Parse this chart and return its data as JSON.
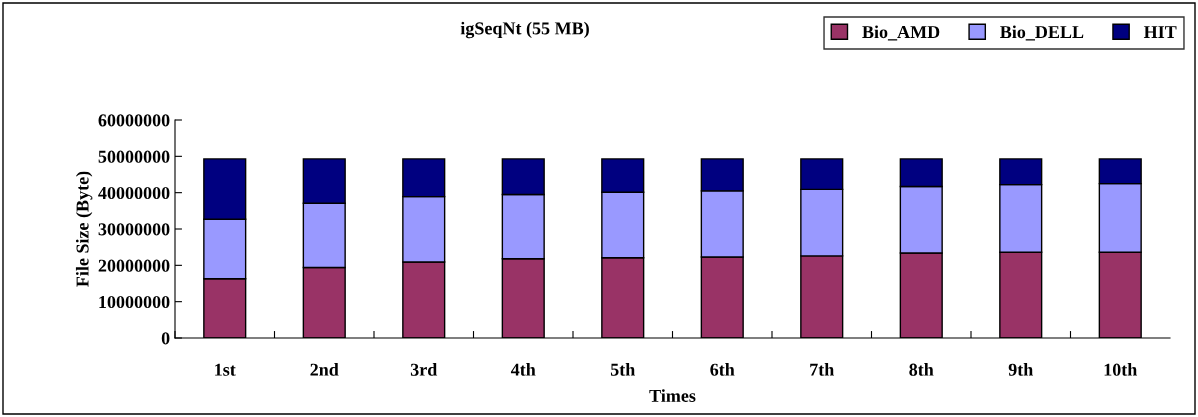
{
  "chart_data": {
    "type": "bar",
    "title": "igSeqNt (55 MB)",
    "xlabel": "Times",
    "ylabel": "File Size (Byte)",
    "categories": [
      "1st",
      "2nd",
      "3rd",
      "4th",
      "5th",
      "6th",
      "7th",
      "8th",
      "9th",
      "10th"
    ],
    "stacked": true,
    "legend": "top right",
    "grid": false,
    "ylim": [
      0,
      60000000
    ],
    "yticks": [
      0,
      10000000,
      20000000,
      30000000,
      40000000,
      50000000,
      60000000
    ],
    "series": [
      {
        "name": "Bio_AMD",
        "color": "#993366",
        "values": [
          16300000,
          19400000,
          20900000,
          21800000,
          22100000,
          22300000,
          22600000,
          23400000,
          23600000,
          23600000
        ]
      },
      {
        "name": "Bio_DELL",
        "color": "#9999ff",
        "values": [
          16400000,
          17700000,
          18000000,
          17700000,
          18000000,
          18200000,
          18300000,
          18300000,
          18600000,
          18900000
        ]
      },
      {
        "name": "HIT",
        "color": "#000080",
        "values": [
          16600000,
          12200000,
          10400000,
          9800000,
          9200000,
          8800000,
          8400000,
          7600000,
          7100000,
          6800000
        ]
      }
    ]
  }
}
